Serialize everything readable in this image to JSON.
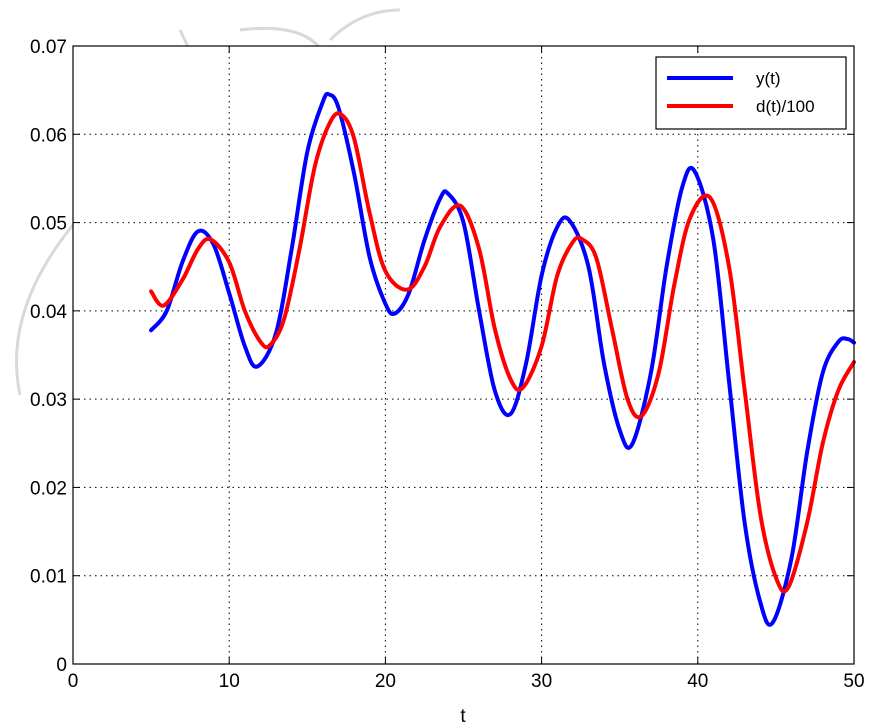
{
  "chart_data": {
    "type": "line",
    "title": "",
    "xlabel": "t",
    "ylabel": "",
    "xlim": [
      0,
      50
    ],
    "ylim": [
      0,
      0.07
    ],
    "grid": true,
    "legend_position": "top-right",
    "x_ticks": [
      "0",
      "10",
      "20",
      "30",
      "40",
      "50"
    ],
    "y_ticks": [
      "0",
      "0.01",
      "0.02",
      "0.03",
      "0.04",
      "0.05",
      "0.06",
      "0.07"
    ],
    "series": [
      {
        "name": "y(t)",
        "color": "#0000ff",
        "points": [
          [
            5.0,
            0.0378
          ],
          [
            6.0,
            0.04
          ],
          [
            7.0,
            0.0455
          ],
          [
            8.0,
            0.049
          ],
          [
            9.0,
            0.0475
          ],
          [
            10.0,
            0.042
          ],
          [
            11.0,
            0.036
          ],
          [
            11.8,
            0.0337
          ],
          [
            13.0,
            0.0375
          ],
          [
            14.0,
            0.047
          ],
          [
            15.0,
            0.058
          ],
          [
            16.0,
            0.0637
          ],
          [
            16.4,
            0.0645
          ],
          [
            17.0,
            0.063
          ],
          [
            18.0,
            0.0555
          ],
          [
            19.0,
            0.046
          ],
          [
            20.0,
            0.0408
          ],
          [
            20.6,
            0.0397
          ],
          [
            21.5,
            0.042
          ],
          [
            22.5,
            0.048
          ],
          [
            23.5,
            0.0527
          ],
          [
            24.0,
            0.0533
          ],
          [
            25.0,
            0.05
          ],
          [
            26.0,
            0.04
          ],
          [
            27.0,
            0.031
          ],
          [
            28.0,
            0.0283
          ],
          [
            29.0,
            0.034
          ],
          [
            30.0,
            0.044
          ],
          [
            31.0,
            0.0495
          ],
          [
            31.8,
            0.0502
          ],
          [
            33.0,
            0.045
          ],
          [
            34.0,
            0.034
          ],
          [
            35.0,
            0.0265
          ],
          [
            35.8,
            0.0249
          ],
          [
            37.0,
            0.033
          ],
          [
            38.0,
            0.045
          ],
          [
            39.0,
            0.054
          ],
          [
            39.8,
            0.0558
          ],
          [
            41.0,
            0.048
          ],
          [
            42.0,
            0.032
          ],
          [
            43.0,
            0.016
          ],
          [
            44.0,
            0.007
          ],
          [
            44.8,
            0.0047
          ],
          [
            46.0,
            0.012
          ],
          [
            47.0,
            0.024
          ],
          [
            48.0,
            0.033
          ],
          [
            49.0,
            0.0365
          ],
          [
            49.6,
            0.0368
          ],
          [
            50.0,
            0.0364
          ]
        ]
      },
      {
        "name": "d(t)/100",
        "color": "#ff0000",
        "points": [
          [
            5.0,
            0.0422
          ],
          [
            5.8,
            0.0406
          ],
          [
            7.0,
            0.0435
          ],
          [
            8.0,
            0.047
          ],
          [
            8.8,
            0.0481
          ],
          [
            10.0,
            0.0455
          ],
          [
            11.0,
            0.04
          ],
          [
            12.0,
            0.0365
          ],
          [
            12.6,
            0.0361
          ],
          [
            13.5,
            0.039
          ],
          [
            14.5,
            0.047
          ],
          [
            15.5,
            0.0565
          ],
          [
            16.5,
            0.0615
          ],
          [
            17.2,
            0.0622
          ],
          [
            18.0,
            0.0595
          ],
          [
            19.0,
            0.051
          ],
          [
            20.0,
            0.0445
          ],
          [
            21.4,
            0.0424
          ],
          [
            22.5,
            0.045
          ],
          [
            23.5,
            0.0495
          ],
          [
            24.8,
            0.0519
          ],
          [
            26.0,
            0.047
          ],
          [
            27.0,
            0.038
          ],
          [
            28.0,
            0.0323
          ],
          [
            28.8,
            0.0313
          ],
          [
            30.0,
            0.036
          ],
          [
            31.0,
            0.044
          ],
          [
            32.0,
            0.0478
          ],
          [
            32.6,
            0.0481
          ],
          [
            33.5,
            0.046
          ],
          [
            34.5,
            0.038
          ],
          [
            35.5,
            0.03
          ],
          [
            36.4,
            0.0281
          ],
          [
            37.5,
            0.033
          ],
          [
            38.5,
            0.043
          ],
          [
            39.5,
            0.0505
          ],
          [
            40.8,
            0.0528
          ],
          [
            42.0,
            0.045
          ],
          [
            43.0,
            0.031
          ],
          [
            44.0,
            0.017
          ],
          [
            45.0,
            0.0098
          ],
          [
            45.8,
            0.0087
          ],
          [
            47.0,
            0.016
          ],
          [
            48.0,
            0.025
          ],
          [
            49.0,
            0.031
          ],
          [
            50.0,
            0.0342
          ]
        ]
      }
    ]
  }
}
